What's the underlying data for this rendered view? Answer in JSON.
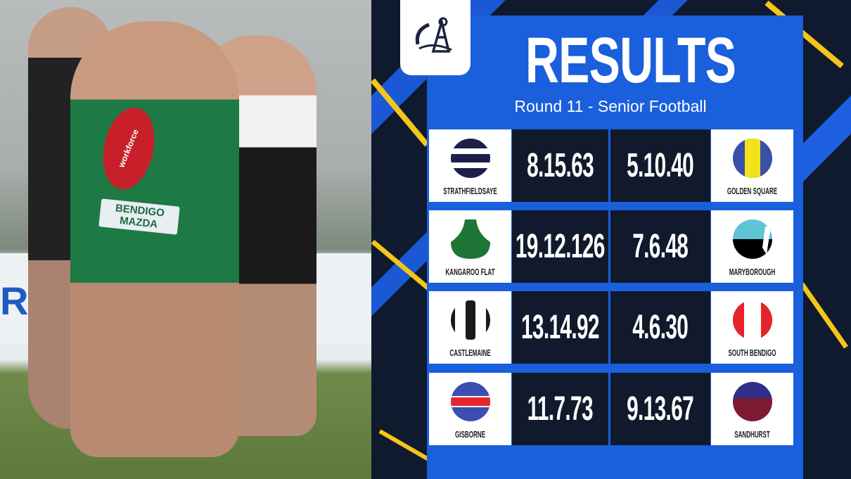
{
  "header": {
    "title": "RESULTS",
    "subtitle": "Round 11 - Senior Football"
  },
  "colors": {
    "panel_blue": "#1a5fdc",
    "score_bg": "#101a2c",
    "accent_yellow": "#f5c518"
  },
  "logo": {
    "icon": "league-logo-icon"
  },
  "photo": {
    "ball_text": "workforce",
    "sponsor_text": "BENDIGO MAZDA"
  },
  "matches": [
    {
      "home": "STRATHFIELDSAYE",
      "home_score": "8.15.63",
      "away_score": "5.10.40",
      "away": "GOLDEN SQUARE"
    },
    {
      "home": "KANGAROO FLAT",
      "home_score": "19.12.126",
      "away_score": "7.6.48",
      "away": "MARYBOROUGH"
    },
    {
      "home": "CASTLEMAINE",
      "home_score": "13.14.92",
      "away_score": "4.6.30",
      "away": "SOUTH BENDIGO"
    },
    {
      "home": "GISBORNE",
      "home_score": "11.7.73",
      "away_score": "9.13.67",
      "away": "SANDHURST"
    }
  ]
}
